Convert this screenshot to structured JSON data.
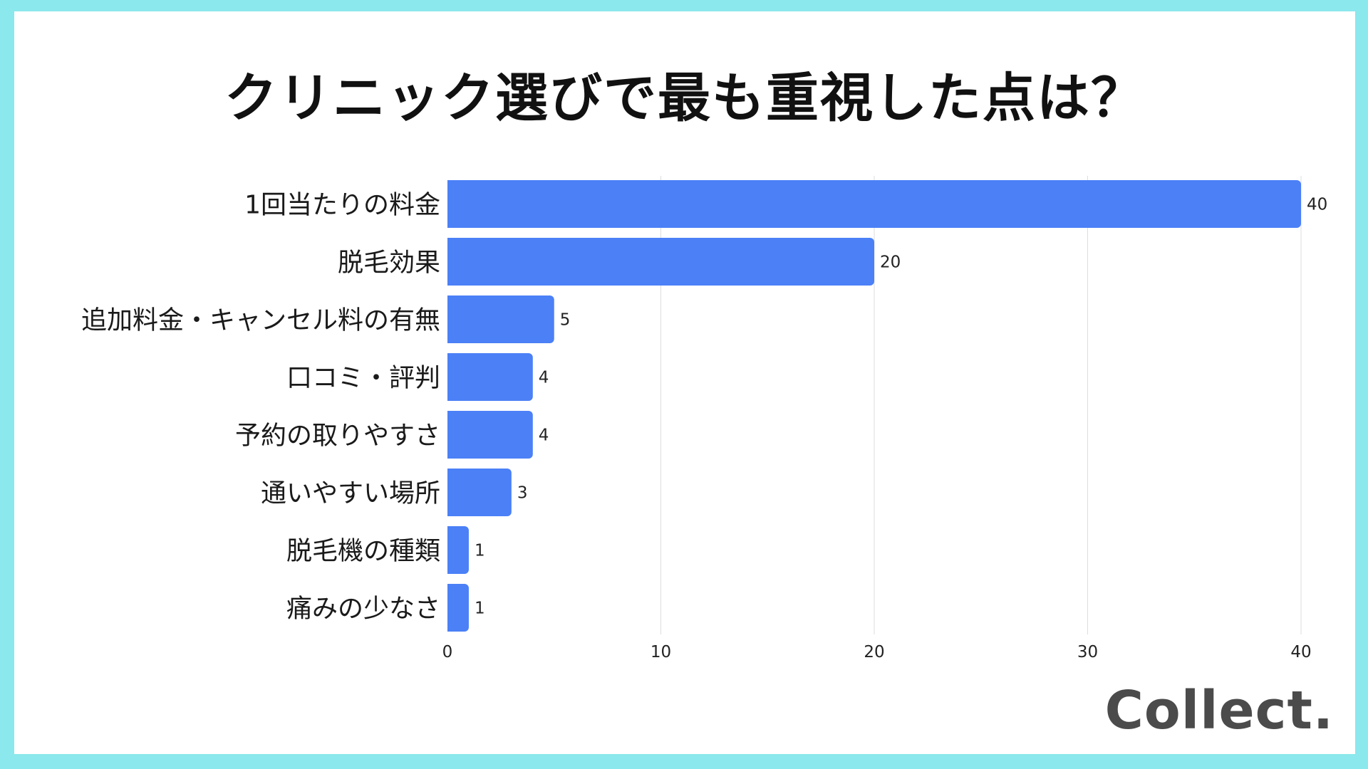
{
  "title": "クリニック選びで最も重視した点は？",
  "logo": "Collect.",
  "colors": {
    "background": "#8BE8EC",
    "card": "#FFFFFF",
    "bar": "#4B80F6",
    "grid": "#DDDDDD"
  },
  "chart_data": {
    "type": "bar",
    "orientation": "horizontal",
    "title": "クリニック選びで最も重視した点は？",
    "categories": [
      "1回当たりの料金",
      "脱毛効果",
      "追加料金・キャンセル料の有無",
      "口コミ・評判",
      "予約の取りやすさ",
      "通いやすい場所",
      "脱毛機の種類",
      "痛みの少なさ"
    ],
    "values": [
      40,
      20,
      5,
      4,
      4,
      3,
      1,
      1
    ],
    "xlim": [
      0,
      40
    ],
    "xticks": [
      0,
      10,
      20,
      30,
      40
    ],
    "xlabel": "",
    "ylabel": "",
    "grid": "vertical",
    "data_labels": true
  }
}
